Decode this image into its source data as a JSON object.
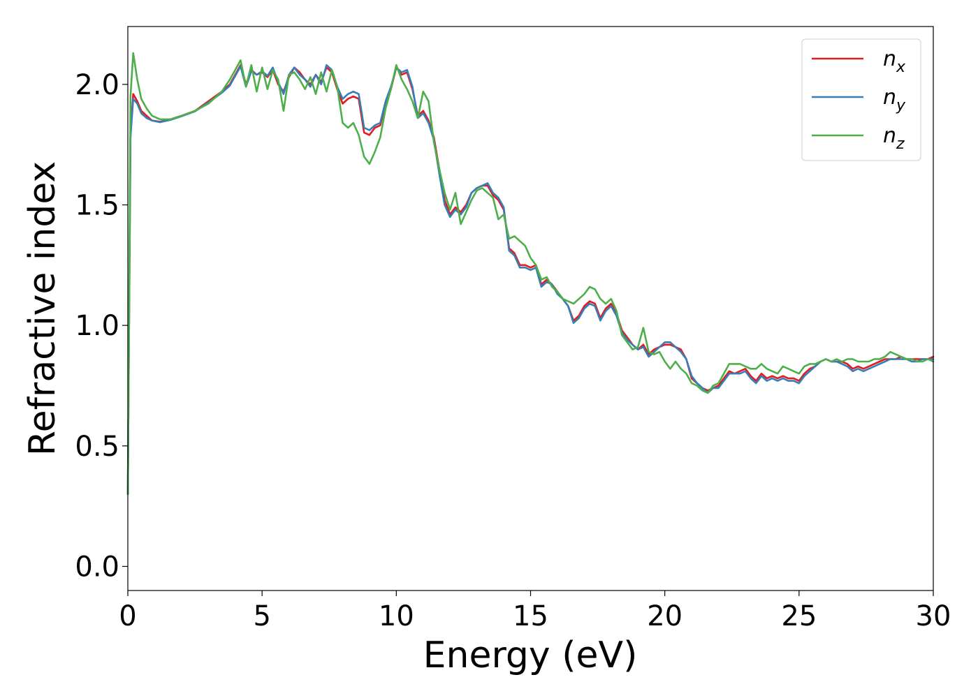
{
  "chart_data": {
    "type": "line",
    "xlabel": "Energy (eV)",
    "ylabel": "Refractive index",
    "xlim": [
      0,
      30
    ],
    "ylim": [
      -0.1,
      2.24
    ],
    "xticks": [
      "0",
      "5",
      "10",
      "15",
      "20",
      "25",
      "30"
    ],
    "yticks": [
      "0.0",
      "0.5",
      "1.0",
      "1.5",
      "2.0"
    ],
    "grid": false,
    "legend_position": "top-right",
    "series": [
      {
        "name": "n_x",
        "legend_base": "n",
        "legend_sub": "x",
        "color": "#e41a1c",
        "x": [
          0,
          0.1,
          0.2,
          0.35,
          0.5,
          0.7,
          0.9,
          1.2,
          1.6,
          2.0,
          2.5,
          3.0,
          3.5,
          3.8,
          4.0,
          4.2,
          4.4,
          4.6,
          4.8,
          5.0,
          5.2,
          5.4,
          5.6,
          5.8,
          6.0,
          6.2,
          6.4,
          6.6,
          6.8,
          7.0,
          7.2,
          7.4,
          7.6,
          7.8,
          8.0,
          8.2,
          8.4,
          8.6,
          8.8,
          9.0,
          9.2,
          9.4,
          9.6,
          9.8,
          10.0,
          10.2,
          10.4,
          10.6,
          10.8,
          11.0,
          11.2,
          11.4,
          11.6,
          11.8,
          12.0,
          12.2,
          12.4,
          12.6,
          12.8,
          13.0,
          13.2,
          13.4,
          13.6,
          13.8,
          14.0,
          14.2,
          14.4,
          14.6,
          14.8,
          15.0,
          15.2,
          15.4,
          15.6,
          15.8,
          16.0,
          16.2,
          16.4,
          16.6,
          16.8,
          17.0,
          17.2,
          17.4,
          17.6,
          17.8,
          18.0,
          18.2,
          18.4,
          18.6,
          18.8,
          19.0,
          19.2,
          19.4,
          19.6,
          19.8,
          20.0,
          20.2,
          20.4,
          20.6,
          20.8,
          21.0,
          21.2,
          21.4,
          21.6,
          21.8,
          22.0,
          22.2,
          22.4,
          22.6,
          22.8,
          23.0,
          23.2,
          23.4,
          23.6,
          23.8,
          24.0,
          24.2,
          24.4,
          24.6,
          24.8,
          25.0,
          25.2,
          25.4,
          25.6,
          25.8,
          26.0,
          26.2,
          26.4,
          26.6,
          26.8,
          27.0,
          27.2,
          27.4,
          27.6,
          27.8,
          28.0,
          28.2,
          28.4,
          28.6,
          28.8,
          29.0,
          29.2,
          29.4,
          29.6,
          29.8,
          30.0
        ],
        "y": [
          0.3,
          1.8,
          1.96,
          1.93,
          1.89,
          1.87,
          1.85,
          1.845,
          1.855,
          1.87,
          1.89,
          1.93,
          1.97,
          2.0,
          2.04,
          2.08,
          2.0,
          2.06,
          2.04,
          2.05,
          2.03,
          2.06,
          2.0,
          1.97,
          2.03,
          2.07,
          2.05,
          2.02,
          2.0,
          2.04,
          2.01,
          2.07,
          2.05,
          1.98,
          1.92,
          1.94,
          1.95,
          1.94,
          1.8,
          1.79,
          1.82,
          1.83,
          1.92,
          1.98,
          2.07,
          2.04,
          2.05,
          1.98,
          1.87,
          1.89,
          1.85,
          1.78,
          1.65,
          1.52,
          1.46,
          1.49,
          1.47,
          1.5,
          1.55,
          1.57,
          1.58,
          1.58,
          1.54,
          1.52,
          1.48,
          1.32,
          1.3,
          1.25,
          1.25,
          1.24,
          1.25,
          1.17,
          1.19,
          1.17,
          1.14,
          1.11,
          1.08,
          1.02,
          1.04,
          1.08,
          1.1,
          1.09,
          1.03,
          1.07,
          1.09,
          1.05,
          0.98,
          0.95,
          0.92,
          0.9,
          0.92,
          0.88,
          0.9,
          0.91,
          0.92,
          0.92,
          0.91,
          0.9,
          0.86,
          0.78,
          0.76,
          0.74,
          0.73,
          0.74,
          0.75,
          0.78,
          0.81,
          0.8,
          0.81,
          0.82,
          0.79,
          0.77,
          0.8,
          0.78,
          0.79,
          0.78,
          0.79,
          0.78,
          0.78,
          0.77,
          0.8,
          0.82,
          0.83,
          0.85,
          0.86,
          0.85,
          0.85,
          0.85,
          0.84,
          0.82,
          0.83,
          0.82,
          0.83,
          0.84,
          0.85,
          0.86,
          0.86,
          0.86,
          0.87,
          0.86,
          0.86,
          0.86,
          0.86,
          0.86,
          0.87
        ]
      },
      {
        "name": "n_y",
        "legend_base": "n",
        "legend_sub": "y",
        "color": "#377eb8",
        "x": [
          0,
          0.1,
          0.2,
          0.35,
          0.5,
          0.7,
          0.9,
          1.2,
          1.6,
          2.0,
          2.5,
          3.0,
          3.5,
          3.8,
          4.0,
          4.2,
          4.4,
          4.6,
          4.8,
          5.0,
          5.2,
          5.4,
          5.6,
          5.8,
          6.0,
          6.2,
          6.4,
          6.6,
          6.8,
          7.0,
          7.2,
          7.4,
          7.6,
          7.8,
          8.0,
          8.2,
          8.4,
          8.6,
          8.8,
          9.0,
          9.2,
          9.4,
          9.6,
          9.8,
          10.0,
          10.2,
          10.4,
          10.6,
          10.8,
          11.0,
          11.2,
          11.4,
          11.6,
          11.8,
          12.0,
          12.2,
          12.4,
          12.6,
          12.8,
          13.0,
          13.2,
          13.4,
          13.6,
          13.8,
          14.0,
          14.2,
          14.4,
          14.6,
          14.8,
          15.0,
          15.2,
          15.4,
          15.6,
          15.8,
          16.0,
          16.2,
          16.4,
          16.6,
          16.8,
          17.0,
          17.2,
          17.4,
          17.6,
          17.8,
          18.0,
          18.2,
          18.4,
          18.6,
          18.8,
          19.0,
          19.2,
          19.4,
          19.6,
          19.8,
          20.0,
          20.2,
          20.4,
          20.6,
          20.8,
          21.0,
          21.2,
          21.4,
          21.6,
          21.8,
          22.0,
          22.2,
          22.4,
          22.6,
          22.8,
          23.0,
          23.2,
          23.4,
          23.6,
          23.8,
          24.0,
          24.2,
          24.4,
          24.6,
          24.8,
          25.0,
          25.2,
          25.4,
          25.6,
          25.8,
          26.0,
          26.2,
          26.4,
          26.6,
          26.8,
          27.0,
          27.2,
          27.4,
          27.6,
          27.8,
          28.0,
          28.2,
          28.4,
          28.6,
          28.8,
          29.0,
          29.2,
          29.4,
          29.6,
          29.8,
          30.0
        ],
        "y": [
          0.3,
          1.78,
          1.94,
          1.92,
          1.88,
          1.86,
          1.85,
          1.843,
          1.853,
          1.868,
          1.888,
          1.925,
          1.965,
          1.995,
          2.035,
          2.075,
          1.99,
          2.055,
          2.04,
          2.055,
          2.035,
          2.07,
          2.01,
          1.96,
          2.04,
          2.07,
          2.04,
          2.02,
          1.99,
          2.04,
          2.0,
          2.08,
          2.06,
          1.99,
          1.94,
          1.96,
          1.97,
          1.96,
          1.82,
          1.81,
          1.83,
          1.84,
          1.93,
          1.99,
          2.07,
          2.05,
          2.06,
          1.99,
          1.86,
          1.88,
          1.84,
          1.77,
          1.63,
          1.5,
          1.45,
          1.48,
          1.46,
          1.49,
          1.55,
          1.57,
          1.58,
          1.59,
          1.55,
          1.53,
          1.49,
          1.31,
          1.29,
          1.24,
          1.24,
          1.23,
          1.24,
          1.16,
          1.18,
          1.17,
          1.13,
          1.11,
          1.08,
          1.01,
          1.03,
          1.07,
          1.09,
          1.08,
          1.02,
          1.06,
          1.08,
          1.04,
          0.97,
          0.94,
          0.92,
          0.9,
          0.91,
          0.87,
          0.89,
          0.91,
          0.93,
          0.93,
          0.91,
          0.89,
          0.86,
          0.79,
          0.76,
          0.74,
          0.72,
          0.74,
          0.74,
          0.77,
          0.8,
          0.8,
          0.8,
          0.81,
          0.78,
          0.76,
          0.79,
          0.77,
          0.78,
          0.77,
          0.78,
          0.77,
          0.77,
          0.76,
          0.79,
          0.81,
          0.83,
          0.85,
          0.86,
          0.85,
          0.85,
          0.84,
          0.83,
          0.81,
          0.82,
          0.81,
          0.82,
          0.83,
          0.84,
          0.85,
          0.86,
          0.86,
          0.86,
          0.86,
          0.85,
          0.85,
          0.86,
          0.86,
          0.86
        ]
      },
      {
        "name": "n_z",
        "legend_base": "n",
        "legend_sub": "z",
        "color": "#4daf4a",
        "x": [
          0,
          0.1,
          0.2,
          0.35,
          0.5,
          0.7,
          0.9,
          1.2,
          1.6,
          2.0,
          2.5,
          3.0,
          3.5,
          3.8,
          4.0,
          4.2,
          4.4,
          4.6,
          4.8,
          5.0,
          5.2,
          5.4,
          5.6,
          5.8,
          6.0,
          6.2,
          6.4,
          6.6,
          6.8,
          7.0,
          7.2,
          7.4,
          7.6,
          7.8,
          8.0,
          8.2,
          8.4,
          8.6,
          8.8,
          9.0,
          9.2,
          9.4,
          9.6,
          9.8,
          10.0,
          10.2,
          10.4,
          10.6,
          10.8,
          11.0,
          11.2,
          11.4,
          11.6,
          11.8,
          12.0,
          12.2,
          12.4,
          12.6,
          12.8,
          13.0,
          13.2,
          13.4,
          13.6,
          13.8,
          14.0,
          14.2,
          14.4,
          14.6,
          14.8,
          15.0,
          15.2,
          15.4,
          15.6,
          15.8,
          16.0,
          16.2,
          16.4,
          16.6,
          16.8,
          17.0,
          17.2,
          17.4,
          17.6,
          17.8,
          18.0,
          18.2,
          18.4,
          18.6,
          18.8,
          19.0,
          19.2,
          19.4,
          19.6,
          19.8,
          20.0,
          20.2,
          20.4,
          20.6,
          20.8,
          21.0,
          21.2,
          21.4,
          21.6,
          21.8,
          22.0,
          22.2,
          22.4,
          22.6,
          22.8,
          23.0,
          23.2,
          23.4,
          23.6,
          23.8,
          24.0,
          24.2,
          24.4,
          24.6,
          24.8,
          25.0,
          25.2,
          25.4,
          25.6,
          25.8,
          26.0,
          26.2,
          26.4,
          26.6,
          26.8,
          27.0,
          27.2,
          27.4,
          27.6,
          27.8,
          28.0,
          28.2,
          28.4,
          28.6,
          28.8,
          29.0,
          29.2,
          29.4,
          29.6,
          29.8,
          30.0
        ],
        "y": [
          0.3,
          1.95,
          2.13,
          2.02,
          1.94,
          1.9,
          1.87,
          1.855,
          1.855,
          1.87,
          1.89,
          1.92,
          1.97,
          2.02,
          2.06,
          2.1,
          1.99,
          2.08,
          1.97,
          2.07,
          1.98,
          2.06,
          2.02,
          1.89,
          2.04,
          2.05,
          2.02,
          1.98,
          2.03,
          1.96,
          2.05,
          1.97,
          2.06,
          1.99,
          1.84,
          1.82,
          1.84,
          1.79,
          1.7,
          1.67,
          1.72,
          1.78,
          1.9,
          1.98,
          2.08,
          2.02,
          1.98,
          1.93,
          1.86,
          1.97,
          1.93,
          1.76,
          1.65,
          1.55,
          1.48,
          1.55,
          1.42,
          1.47,
          1.52,
          1.56,
          1.57,
          1.55,
          1.53,
          1.44,
          1.46,
          1.36,
          1.37,
          1.35,
          1.33,
          1.28,
          1.25,
          1.19,
          1.2,
          1.16,
          1.14,
          1.11,
          1.1,
          1.09,
          1.11,
          1.13,
          1.16,
          1.15,
          1.11,
          1.09,
          1.11,
          1.06,
          0.96,
          0.93,
          0.9,
          0.91,
          0.99,
          0.89,
          0.88,
          0.89,
          0.85,
          0.82,
          0.85,
          0.82,
          0.8,
          0.76,
          0.75,
          0.73,
          0.72,
          0.75,
          0.76,
          0.8,
          0.84,
          0.84,
          0.84,
          0.83,
          0.82,
          0.82,
          0.84,
          0.82,
          0.81,
          0.8,
          0.83,
          0.82,
          0.81,
          0.8,
          0.83,
          0.84,
          0.84,
          0.85,
          0.86,
          0.85,
          0.86,
          0.85,
          0.86,
          0.86,
          0.85,
          0.85,
          0.85,
          0.86,
          0.86,
          0.87,
          0.89,
          0.88,
          0.87,
          0.86,
          0.86,
          0.85,
          0.85,
          0.86,
          0.85
        ]
      }
    ]
  }
}
